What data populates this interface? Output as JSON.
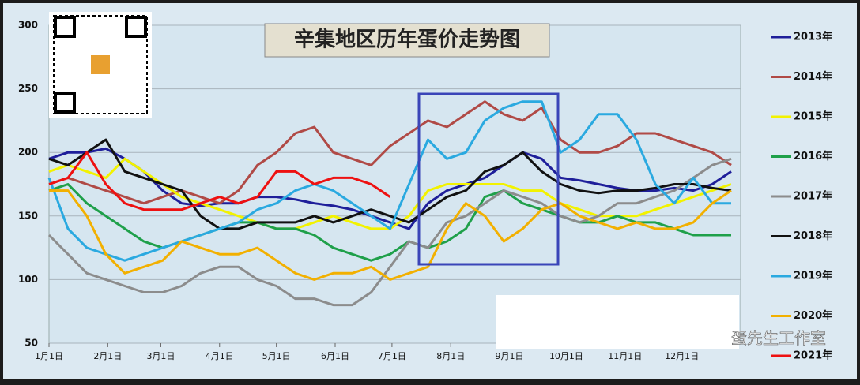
{
  "chart_data": {
    "type": "line",
    "title": "辛集地区历年蛋价走势图",
    "watermark": "蛋先生工作室",
    "x": [
      0,
      10,
      20,
      30,
      40,
      50,
      60,
      70,
      80,
      90,
      100,
      110,
      120,
      130,
      140,
      150,
      160,
      170,
      180,
      190,
      200,
      210,
      220,
      230,
      240,
      250,
      260,
      270,
      280,
      290,
      300,
      310,
      320,
      330,
      340,
      350,
      360
    ],
    "xlim": [
      0,
      365
    ],
    "xticks": [
      {
        "value": 0,
        "label": "1月1日"
      },
      {
        "value": 31,
        "label": "2月1日"
      },
      {
        "value": 59,
        "label": "3月1日"
      },
      {
        "value": 90,
        "label": "4月1日"
      },
      {
        "value": 120,
        "label": "5月1日"
      },
      {
        "value": 151,
        "label": "6月1日"
      },
      {
        "value": 181,
        "label": "7月1日"
      },
      {
        "value": 212,
        "label": "8月1日"
      },
      {
        "value": 243,
        "label": "9月1日"
      },
      {
        "value": 273,
        "label": "10月1日"
      },
      {
        "value": 304,
        "label": "11月1日"
      },
      {
        "value": 334,
        "label": "12月1日"
      }
    ],
    "ylim": [
      50,
      300
    ],
    "yticks": [
      50,
      100,
      150,
      200,
      250,
      300
    ],
    "grid": true,
    "series": [
      {
        "name": "2013年",
        "color": "#1f1f9a",
        "values": [
          195,
          200,
          200,
          203,
          195,
          185,
          170,
          160,
          158,
          160,
          160,
          165,
          165,
          163,
          160,
          158,
          155,
          150,
          145,
          140,
          160,
          170,
          175,
          180,
          190,
          200,
          195,
          180,
          178,
          175,
          172,
          170,
          170,
          172,
          170,
          175,
          185
        ]
      },
      {
        "name": "2014年",
        "color": "#b04a46",
        "values": [
          175,
          180,
          175,
          170,
          165,
          160,
          165,
          170,
          165,
          160,
          170,
          190,
          200,
          215,
          220,
          200,
          195,
          190,
          205,
          215,
          225,
          220,
          230,
          240,
          230,
          225,
          235,
          210,
          200,
          200,
          205,
          215,
          215,
          210,
          205,
          200,
          190
        ]
      },
      {
        "name": "2015年",
        "color": "#f2f200",
        "values": [
          185,
          190,
          185,
          180,
          195,
          185,
          175,
          165,
          160,
          155,
          150,
          145,
          140,
          140,
          145,
          150,
          145,
          140,
          140,
          150,
          170,
          175,
          175,
          175,
          175,
          170,
          170,
          160,
          155,
          150,
          150,
          150,
          155,
          160,
          165,
          170,
          175
        ]
      },
      {
        "name": "2016年",
        "color": "#1fa04a",
        "values": [
          170,
          175,
          160,
          150,
          140,
          130,
          125,
          130,
          135,
          140,
          145,
          145,
          140,
          140,
          135,
          125,
          120,
          115,
          120,
          130,
          125,
          130,
          140,
          165,
          170,
          160,
          155,
          150,
          145,
          145,
          150,
          145,
          145,
          140,
          135,
          135,
          135
        ]
      },
      {
        "name": "2017年",
        "color": "#8c8c8c",
        "values": [
          135,
          120,
          105,
          100,
          95,
          90,
          90,
          95,
          105,
          110,
          110,
          100,
          95,
          85,
          85,
          80,
          80,
          90,
          110,
          130,
          125,
          145,
          150,
          160,
          170,
          165,
          160,
          150,
          145,
          150,
          160,
          160,
          165,
          170,
          180,
          190,
          195
        ]
      },
      {
        "name": "2018年",
        "color": "#111111",
        "values": [
          195,
          190,
          200,
          210,
          185,
          180,
          175,
          170,
          150,
          140,
          140,
          145,
          145,
          145,
          150,
          145,
          150,
          155,
          150,
          145,
          155,
          165,
          170,
          185,
          190,
          200,
          185,
          175,
          170,
          168,
          170,
          170,
          172,
          175,
          175,
          172,
          170
        ]
      },
      {
        "name": "2019年",
        "color": "#2aa9e0",
        "values": [
          180,
          140,
          125,
          120,
          115,
          120,
          125,
          130,
          135,
          140,
          145,
          155,
          160,
          170,
          175,
          170,
          160,
          150,
          140,
          175,
          210,
          195,
          200,
          225,
          235,
          240,
          240,
          200,
          210,
          230,
          230,
          210,
          175,
          160,
          180,
          160,
          160
        ]
      },
      {
        "name": "2020年",
        "color": "#f2b000",
        "values": [
          170,
          170,
          150,
          120,
          105,
          110,
          115,
          130,
          125,
          120,
          120,
          125,
          115,
          105,
          100,
          105,
          105,
          110,
          100,
          105,
          110,
          140,
          160,
          150,
          130,
          140,
          155,
          160,
          150,
          145,
          140,
          145,
          140,
          140,
          145,
          160,
          170
        ]
      },
      {
        "name": "2021年",
        "color": "#ee1111",
        "values": [
          175,
          180,
          200,
          175,
          160,
          155,
          155,
          155,
          160,
          165,
          160,
          165,
          185,
          185,
          175,
          180,
          180,
          175,
          165,
          null,
          null,
          null,
          null,
          null,
          null,
          null,
          null,
          null,
          null,
          null,
          null,
          null,
          null,
          null,
          null,
          null,
          null
        ]
      }
    ]
  }
}
